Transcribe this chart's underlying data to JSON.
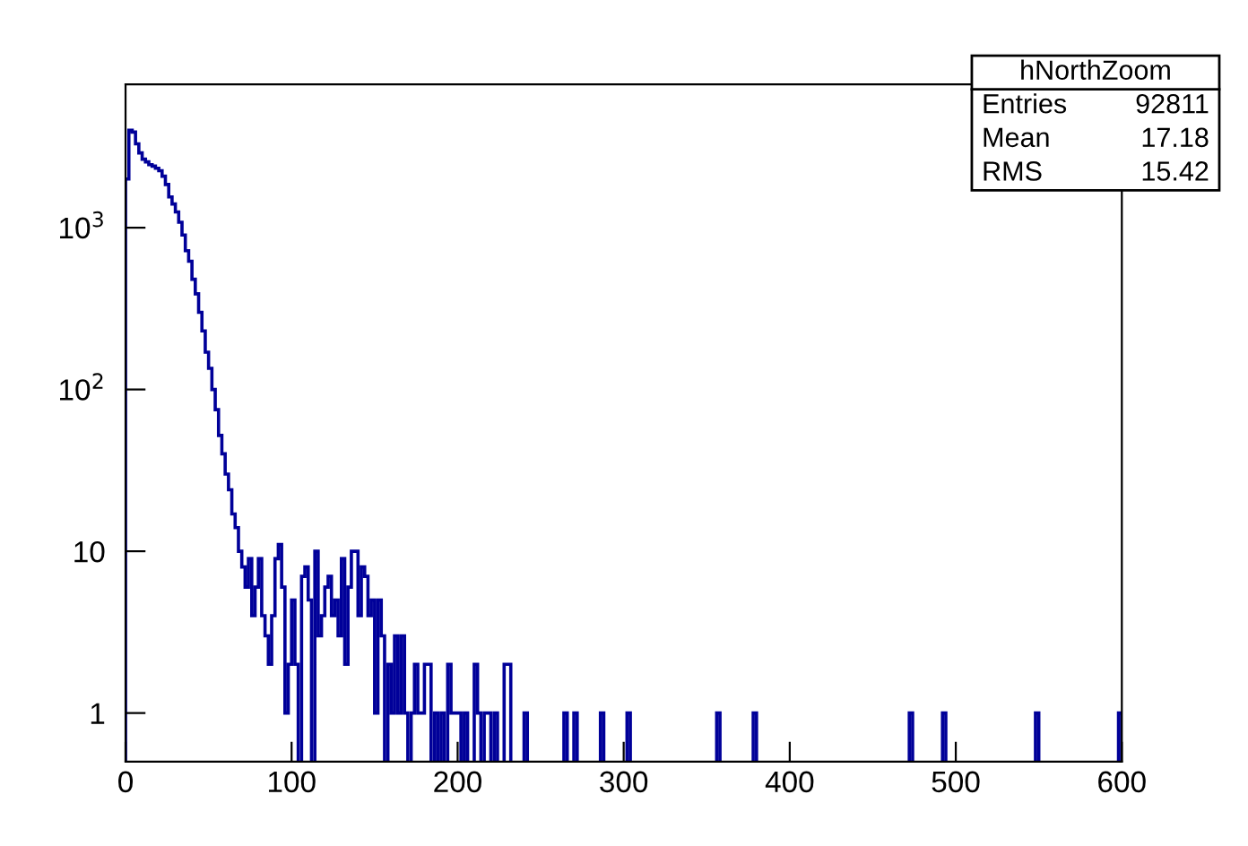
{
  "chart_data": {
    "type": "histogram",
    "color": "#000099",
    "bins": [
      0,
      2,
      4,
      6,
      8,
      10,
      12,
      14,
      16,
      18,
      20,
      22,
      24,
      26,
      28,
      30,
      32,
      34,
      36,
      38,
      40,
      42,
      44,
      46,
      48,
      50,
      52,
      54,
      56,
      58,
      60,
      62,
      64,
      66,
      68,
      70,
      72,
      74,
      76,
      78,
      80,
      82,
      84,
      86,
      88,
      90,
      92,
      94,
      96,
      98,
      100,
      102,
      104,
      106,
      108,
      110,
      112,
      114,
      116,
      118,
      120,
      122,
      124,
      126,
      128,
      130,
      132,
      134,
      136,
      138,
      140,
      142,
      144,
      146,
      148,
      150,
      152,
      154,
      156,
      158,
      160,
      162,
      164,
      166,
      168,
      170,
      172,
      174,
      176,
      178,
      180,
      182,
      184,
      186,
      188,
      190,
      192,
      194,
      196,
      198,
      200,
      202,
      204,
      206,
      208,
      210,
      212,
      214,
      216,
      218,
      220,
      222,
      224,
      226,
      228,
      230,
      232,
      234,
      240,
      242,
      264,
      266,
      270,
      272,
      286,
      288,
      302,
      304,
      356,
      358,
      378,
      380,
      472,
      474,
      492,
      494,
      548,
      550,
      598,
      600
    ],
    "values": [
      2000,
      4000,
      3900,
      3300,
      2900,
      2650,
      2550,
      2450,
      2400,
      2330,
      2250,
      2080,
      1850,
      1550,
      1400,
      1250,
      1080,
      900,
      720,
      620,
      480,
      390,
      300,
      230,
      170,
      135,
      100,
      75,
      52,
      40,
      30,
      24,
      17,
      14,
      10,
      8,
      6,
      9,
      4,
      6,
      9,
      4,
      3,
      2,
      4,
      9,
      11,
      6,
      1,
      2,
      5,
      2,
      null,
      7,
      8,
      5,
      null,
      10,
      3,
      4,
      6,
      7,
      4,
      5,
      3,
      9,
      2,
      6,
      10,
      10,
      4,
      8,
      7,
      4,
      5,
      1,
      5,
      3,
      null,
      2,
      1,
      3,
      1,
      3,
      1,
      null,
      1,
      2,
      1,
      1,
      2,
      2,
      null,
      1,
      null,
      1,
      null,
      2,
      1,
      1,
      1,
      null,
      1,
      null,
      null,
      2,
      1,
      null,
      1,
      1,
      null,
      1,
      null,
      null,
      2,
      2,
      null,
      null,
      1,
      null,
      1,
      null,
      1,
      null,
      1,
      null,
      1,
      null,
      1,
      null,
      1,
      null,
      1,
      null,
      1,
      null,
      1,
      null,
      1
    ],
    "log": true,
    "xlim": [
      0,
      600
    ],
    "xticks": [
      0,
      100,
      200,
      300,
      400,
      500,
      600
    ],
    "ylim": [
      0.5,
      7700
    ],
    "yticks": [
      1,
      10,
      {
        "value": 100,
        "label": "10$^{2}$"
      },
      {
        "value": 1000,
        "label": "10$^{3}$"
      }
    ],
    "grid": false,
    "annotations": [
      "hNorthZoom",
      "Entries",
      "92811",
      "Mean",
      "17.18",
      "RMS",
      "15.42"
    ]
  }
}
